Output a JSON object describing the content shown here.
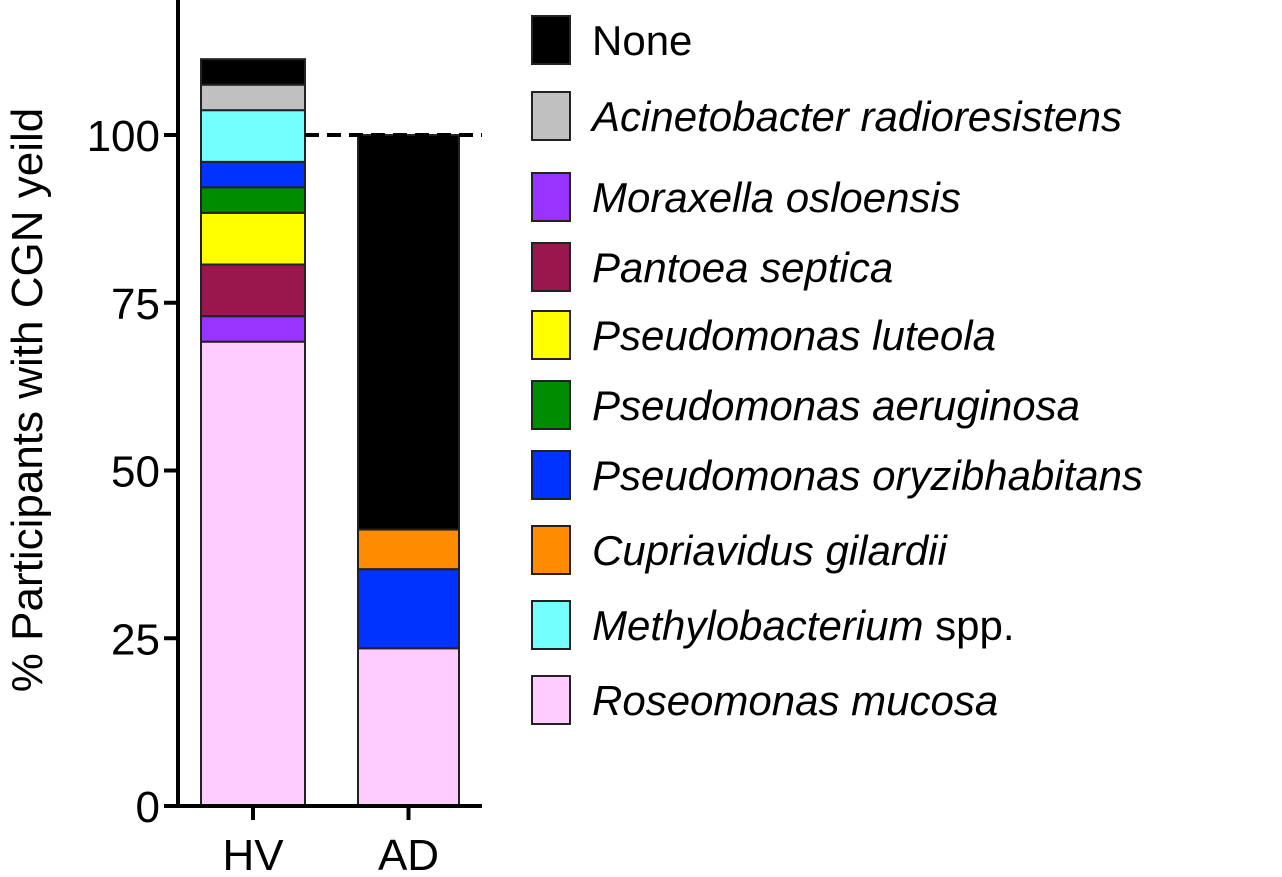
{
  "chart_data": {
    "type": "bar",
    "stacked": true,
    "title": "",
    "xlabel": "",
    "ylabel": "% Participants with CGN yeild",
    "ylim": [
      0,
      120
    ],
    "yticks": [
      0,
      25,
      50,
      75,
      100
    ],
    "ytick_labels": [
      "0",
      "25",
      "50",
      "75",
      "100"
    ],
    "reference_line": {
      "y": 100,
      "style": "dashed"
    },
    "categories": [
      "HV",
      "AD"
    ],
    "legend_placement": "right",
    "series": [
      {
        "name": "Roseomonas mucosa",
        "italic": "Roseomonas mucosa",
        "suffix": "",
        "color": "#ffccff",
        "values": [
          69.2,
          23.5
        ]
      },
      {
        "name": "Moraxella osloensis",
        "italic": "Moraxella osloensis",
        "suffix": "",
        "color": "#9933ff",
        "values": [
          3.8,
          0
        ]
      },
      {
        "name": "Pantoea septica",
        "italic": "Pantoea septica",
        "suffix": "",
        "color": "#99174d",
        "values": [
          7.7,
          0
        ]
      },
      {
        "name": "Pseudomonas luteola",
        "italic": "Pseudomonas luteola",
        "suffix": "",
        "color": "#ffff00",
        "values": [
          7.7,
          0
        ]
      },
      {
        "name": "Pseudomonas aeruginosa",
        "italic": "Pseudomonas aeruginosa",
        "suffix": "",
        "color": "#008c00",
        "values": [
          3.8,
          0
        ]
      },
      {
        "name": "Pseudomonas oryzibhabitans",
        "italic": "Pseudomonas oryzibhabitans",
        "suffix": "",
        "color": "#0033ff",
        "values": [
          3.8,
          11.8
        ]
      },
      {
        "name": "Cupriavidus gilardii",
        "italic": "Cupriavidus gilardii",
        "suffix": "",
        "color": "#ff8c00",
        "values": [
          0,
          5.9
        ]
      },
      {
        "name": "Methylobacterium spp.",
        "italic": "Methylobacterium",
        "suffix": " spp.",
        "color": "#73ffff",
        "values": [
          7.7,
          0
        ]
      },
      {
        "name": "Acinetobacter radioresistens",
        "italic": "Acinetobacter radioresistens",
        "suffix": "",
        "color": "#c0c0c0",
        "values": [
          3.8,
          0
        ]
      },
      {
        "name": "None",
        "italic": "",
        "suffix": "None",
        "color": "#000000",
        "values": [
          3.8,
          58.8
        ]
      }
    ],
    "legend_order": [
      "None",
      "Acinetobacter radioresistens",
      "Moraxella osloensis",
      "Pantoea septica",
      "Pseudomonas luteola",
      "Pseudomonas aeruginosa",
      "Pseudomonas oryzibhabitans",
      "Cupriavidus gilardii",
      "Methylobacterium spp.",
      "Roseomonas mucosa"
    ]
  }
}
